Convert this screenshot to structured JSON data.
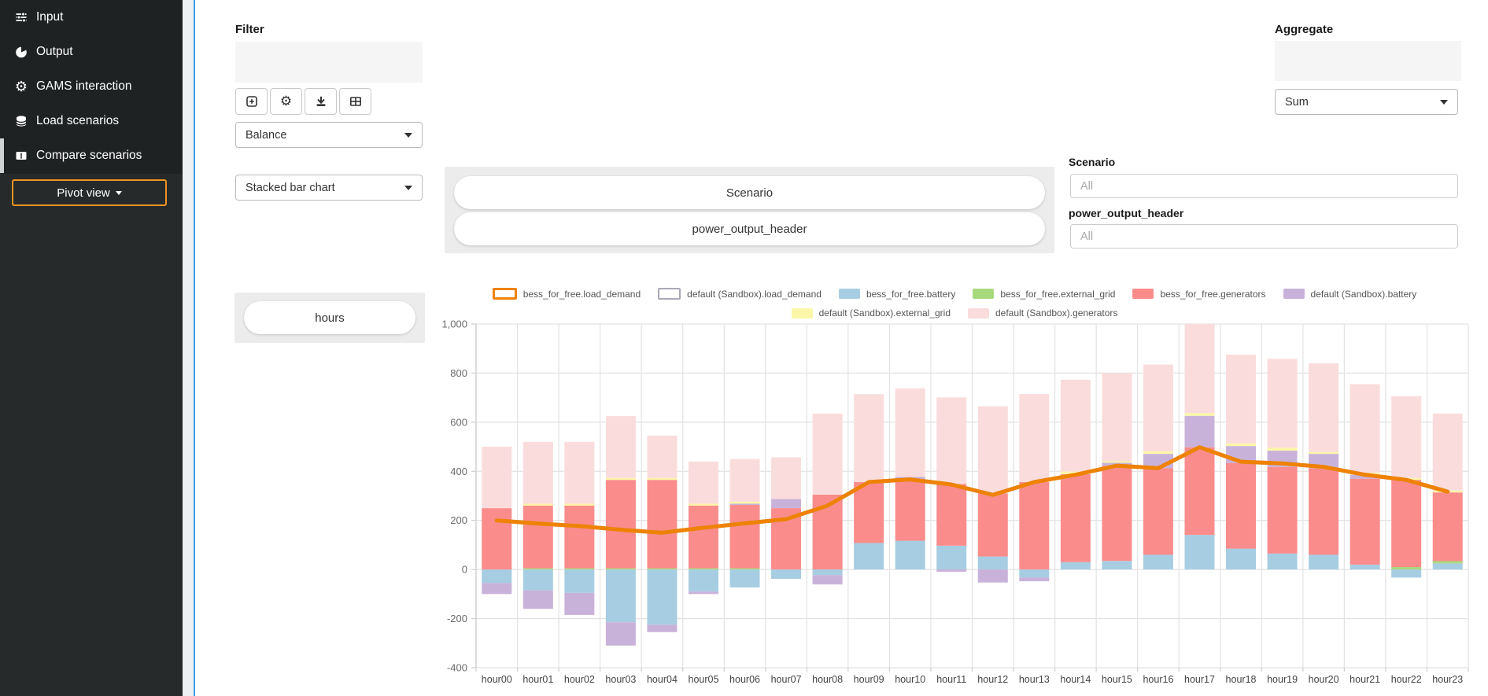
{
  "sidebar": {
    "items": [
      {
        "label": "Input",
        "icon": "sliders-icon"
      },
      {
        "label": "Output",
        "icon": "pie-chart-icon"
      },
      {
        "label": "GAMS interaction",
        "icon": "gear-icon"
      },
      {
        "label": "Load scenarios",
        "icon": "database-icon"
      },
      {
        "label": "Compare scenarios",
        "icon": "table-columns-icon",
        "active": true
      }
    ],
    "pivot_button_label": "Pivot view"
  },
  "filter_panel": {
    "label": "Filter",
    "toolbar_icons": [
      "plus-square-icon",
      "gear-icon",
      "download-icon",
      "table-icon"
    ],
    "view_select_value": "Balance",
    "chart_type_select_value": "Stacked bar chart",
    "row_pill_label": "hours"
  },
  "aggregate_panel": {
    "label": "Aggregate",
    "select_value": "Sum"
  },
  "column_pills": {
    "pills": [
      "Scenario",
      "power_output_header"
    ]
  },
  "scenario_filter": {
    "label": "Scenario",
    "value": "",
    "placeholder": "All"
  },
  "poh_filter": {
    "label": "power_output_header",
    "value": "",
    "placeholder": "All"
  },
  "chart_data": {
    "type": "bar",
    "stacked": true,
    "title": "",
    "xlabel": "",
    "ylabel": "",
    "grid": true,
    "legend_position": "top",
    "ylim": [
      -400,
      1020
    ],
    "yticks": [
      1000,
      800,
      600,
      400,
      200,
      0,
      -200,
      -400
    ],
    "categories": [
      "hour00",
      "hour01",
      "hour02",
      "hour03",
      "hour04",
      "hour05",
      "hour06",
      "hour07",
      "hour08",
      "hour09",
      "hour10",
      "hour11",
      "hour12",
      "hour13",
      "hour14",
      "hour15",
      "hour16",
      "hour17",
      "hour18",
      "hour19",
      "hour20",
      "hour21",
      "hour22",
      "hour23"
    ],
    "bar_series": [
      {
        "name": "bess_for_free.battery",
        "color": "#a7cde2",
        "values": [
          -55,
          -85,
          -95,
          -215,
          -225,
          -90,
          -73,
          -38,
          -23,
          108,
          117,
          97,
          53,
          -33,
          30,
          35,
          60,
          141,
          85,
          65,
          60,
          20,
          -33,
          25
        ]
      },
      {
        "name": "bess_for_free.external_grid",
        "color": "#a9d97d",
        "values": [
          0,
          5,
          5,
          5,
          5,
          5,
          5,
          0,
          0,
          0,
          0,
          0,
          0,
          0,
          0,
          0,
          0,
          0,
          0,
          0,
          0,
          0,
          10,
          9
        ]
      },
      {
        "name": "bess_for_free.generators",
        "color": "#fa8c8c",
        "values": [
          250,
          255,
          255,
          360,
          360,
          255,
          258,
          250,
          305,
          248,
          248,
          251,
          257,
          356,
          358,
          388,
          353,
          357,
          349,
          353,
          353,
          350,
          355,
          280
        ]
      },
      {
        "name": "default (Sandbox).battery",
        "color": "#c9b2da",
        "values": [
          -45,
          -75,
          -90,
          -95,
          -30,
          -10,
          5,
          37,
          -38,
          0,
          12,
          -9,
          -53,
          -15,
          0,
          12,
          58,
          128,
          69,
          66,
          58,
          16,
          0,
          0
        ]
      },
      {
        "name": "default (Sandbox).external_grid",
        "color": "#fbf6a8",
        "values": [
          0,
          8,
          8,
          8,
          8,
          8,
          8,
          0,
          0,
          0,
          0,
          0,
          0,
          0,
          11,
          6,
          11,
          11,
          11,
          12,
          8,
          8,
          8,
          8
        ]
      },
      {
        "name": "default (Sandbox).generators",
        "color": "#fadcdc",
        "values": [
          250,
          252,
          252,
          252,
          172,
          172,
          174,
          170,
          330,
          358,
          361,
          353,
          355,
          359,
          374,
          359,
          353,
          363,
          361,
          362,
          361,
          361,
          333,
          313
        ]
      }
    ],
    "line_series": [
      {
        "name": "default (Sandbox).load_demand",
        "color": "#a9a9b8",
        "values": [
          200,
          187,
          177,
          162,
          150,
          170,
          188,
          205,
          260,
          356,
          367,
          346,
          304,
          356,
          386,
          423,
          413,
          498,
          439,
          432,
          418,
          386,
          365,
          317
        ]
      },
      {
        "name": "bess_for_free.load_demand",
        "color": "#ef8200",
        "values": [
          200,
          187,
          177,
          162,
          150,
          170,
          188,
          205,
          260,
          356,
          367,
          346,
          304,
          356,
          386,
          423,
          413,
          498,
          439,
          432,
          418,
          386,
          365,
          317
        ]
      }
    ],
    "legend": [
      {
        "label": "bess_for_free.load_demand",
        "swatch": "outline-orange"
      },
      {
        "label": "default (Sandbox).load_demand",
        "swatch": "outline-gray"
      },
      {
        "label": "bess_for_free.battery",
        "swatch": "#a7cde2"
      },
      {
        "label": "bess_for_free.external_grid",
        "swatch": "#a9d97d"
      },
      {
        "label": "bess_for_free.generators",
        "swatch": "#fa8c8c"
      },
      {
        "label": "default (Sandbox).battery",
        "swatch": "#c9b2da"
      },
      {
        "label": "default (Sandbox).external_grid",
        "swatch": "#fbf6a8"
      },
      {
        "label": "default (Sandbox).generators",
        "swatch": "#fadcdc"
      }
    ]
  }
}
